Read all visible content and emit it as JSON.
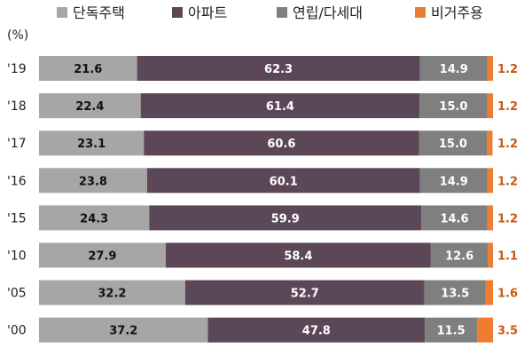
{
  "chart_data": {
    "type": "bar",
    "orientation": "horizontal",
    "stacked": true,
    "unit": "(%)",
    "legend_position": "top",
    "categories": [
      "'19",
      "'18",
      "'17",
      "'16",
      "'15",
      "'10",
      "'05",
      "'00"
    ],
    "series": [
      {
        "name": "단독주택",
        "color": "#A6A6A6",
        "label_color": "#111111",
        "values": [
          21.6,
          22.4,
          23.1,
          23.8,
          24.3,
          27.9,
          32.2,
          37.2
        ]
      },
      {
        "name": "아파트",
        "color": "#5B4758",
        "label_color": "#FFFFFF",
        "values": [
          62.3,
          61.4,
          60.6,
          60.1,
          59.9,
          58.4,
          52.7,
          47.8
        ]
      },
      {
        "name": "연립/다세대",
        "color": "#7F7F7F",
        "label_color": "#FFFFFF",
        "values": [
          14.9,
          15.0,
          15.0,
          14.9,
          14.6,
          12.6,
          13.5,
          11.5
        ]
      },
      {
        "name": "비거주용",
        "color": "#ED7D31",
        "label_color": "#C55A11",
        "values": [
          1.2,
          1.2,
          1.2,
          1.2,
          1.2,
          1.1,
          1.6,
          3.5
        ]
      }
    ],
    "xlim": [
      0,
      100
    ],
    "grid": false
  }
}
